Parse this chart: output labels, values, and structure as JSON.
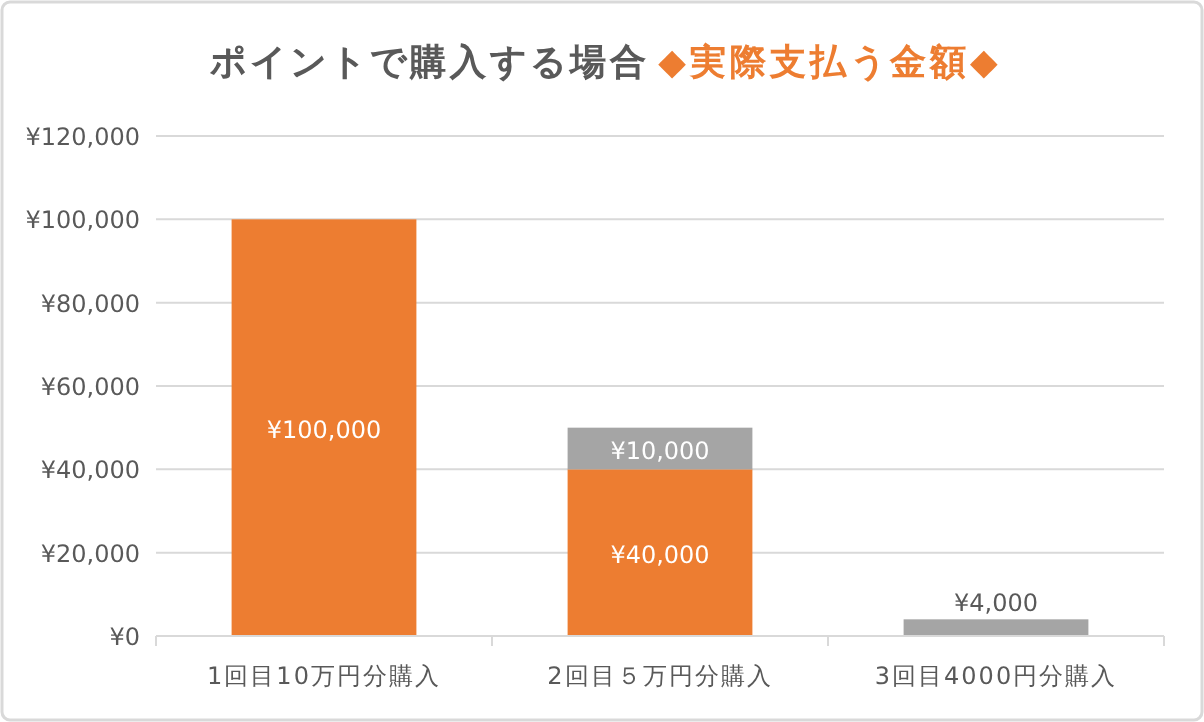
{
  "chart_data": {
    "type": "bar",
    "stacked": true,
    "title": "ポイントで購入する場合",
    "subtitle": "◆実際支払う金額◆",
    "categories": [
      "1回目10万円分購入",
      "2回目５万円分購入",
      "3回目4000円分購入"
    ],
    "series": [
      {
        "color": "#ed7d31",
        "values": [
          100000,
          40000,
          null
        ],
        "value_labels": [
          "¥100,000",
          "¥40,000",
          null
        ]
      },
      {
        "color": "#a5a5a5",
        "values": [
          null,
          10000,
          4000
        ],
        "value_labels": [
          null,
          "¥10,000",
          "¥4,000"
        ]
      }
    ],
    "ylim": [
      0,
      120000
    ],
    "yticks": [
      {
        "value": 0,
        "label": "¥0"
      },
      {
        "value": 20000,
        "label": "¥20,000"
      },
      {
        "value": 40000,
        "label": "¥40,000"
      },
      {
        "value": 60000,
        "label": "¥60,000"
      },
      {
        "value": 80000,
        "label": "¥80,000"
      },
      {
        "value": 100000,
        "label": "¥100,000"
      },
      {
        "value": 120000,
        "label": "¥120,000"
      }
    ],
    "grid": "y"
  }
}
